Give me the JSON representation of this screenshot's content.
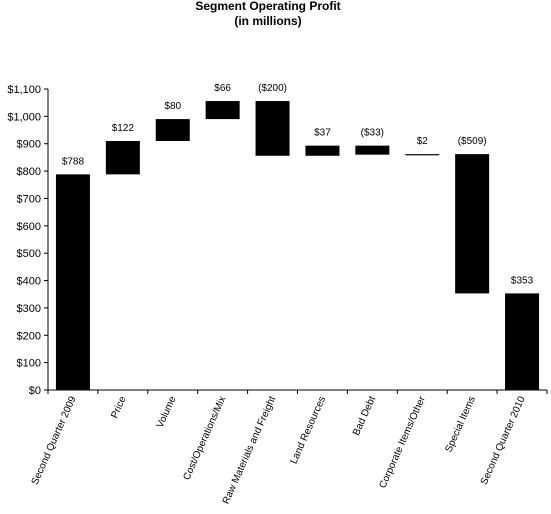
{
  "chart_data": {
    "type": "bar",
    "subtype": "waterfall",
    "title": "Segment Operating Profit",
    "subtitle": "(in millions)",
    "xlabel": "",
    "ylabel": "",
    "ylim": [
      0,
      1100
    ],
    "yticks": [
      0,
      100,
      200,
      300,
      400,
      500,
      600,
      700,
      800,
      900,
      1000,
      1100
    ],
    "ytick_labels": [
      "$0",
      "$100",
      "$200",
      "$300",
      "$400",
      "$500",
      "$600",
      "$700",
      "$800",
      "$900",
      "$1,000",
      "$1,100"
    ],
    "grid": false,
    "legend": "none",
    "bar_color": "#000000",
    "categories": [
      "Second Quarter 2009",
      "Price",
      "Volume",
      "Cost/Operations/Mix",
      "Raw Materials and Freight",
      "Land Resources",
      "Bad Debt",
      "Corporate Items/Other",
      "Special Items",
      "Second Quarter 2010"
    ],
    "bars": [
      {
        "start": 0,
        "end": 788,
        "label": "$788"
      },
      {
        "start": 788,
        "end": 910,
        "label": "$122"
      },
      {
        "start": 910,
        "end": 990,
        "label": "$80"
      },
      {
        "start": 990,
        "end": 1056,
        "label": "$66"
      },
      {
        "start": 1056,
        "end": 856,
        "label": "($200)"
      },
      {
        "start": 856,
        "end": 893,
        "label": "$37"
      },
      {
        "start": 893,
        "end": 860,
        "label": "($33)"
      },
      {
        "start": 860,
        "end": 862,
        "label": "$2"
      },
      {
        "start": 862,
        "end": 353,
        "label": "($509)"
      },
      {
        "start": 0,
        "end": 353,
        "label": "$353"
      }
    ]
  }
}
